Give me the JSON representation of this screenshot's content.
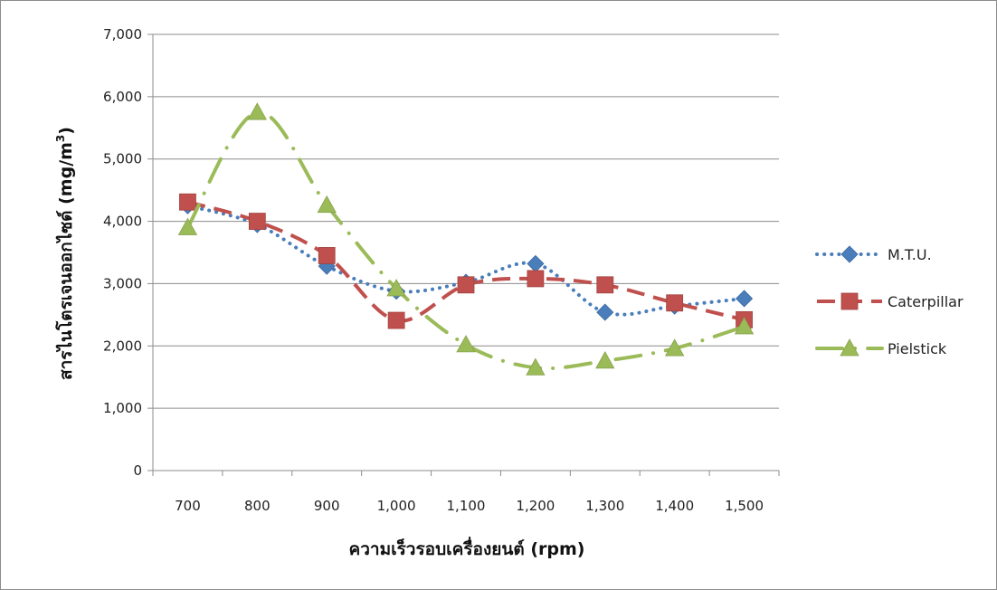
{
  "chart_data": {
    "type": "line",
    "x": [
      "700",
      "800",
      "900",
      "1,000",
      "1,100",
      "1,200",
      "1,300",
      "1,400",
      "1,500"
    ],
    "xlabel": "ความเร็วรอบเครื่องยนต์ (rpm)",
    "ylabel": "สารไนโตรเจนออกไซด์ (mg/m",
    "ylabel_sup": "3",
    "ylabel_end": ")",
    "ylim": [
      0,
      7000
    ],
    "yticks": [
      "0",
      "1,000",
      "2,000",
      "3,000",
      "4,000",
      "5,000",
      "6,000",
      "7,000"
    ],
    "grid": true,
    "legend": "right",
    "series": [
      {
        "name": "M.T.U.",
        "color": "#4a7ebb",
        "marker": "diamond",
        "line": "dotted",
        "values": [
          4250,
          3950,
          3280,
          2880,
          3020,
          3320,
          2540,
          2640,
          2760
        ]
      },
      {
        "name": "Caterpillar",
        "color": "#c0504d",
        "marker": "square",
        "line": "dashed",
        "values": [
          4310,
          4000,
          3450,
          2410,
          2980,
          3080,
          2980,
          2690,
          2420
        ]
      },
      {
        "name": "Pielstick",
        "color": "#9bbb59",
        "marker": "triangle",
        "line": "dashdot",
        "values": [
          3900,
          5750,
          4260,
          2920,
          2020,
          1650,
          1760,
          1960,
          2310
        ]
      }
    ]
  }
}
